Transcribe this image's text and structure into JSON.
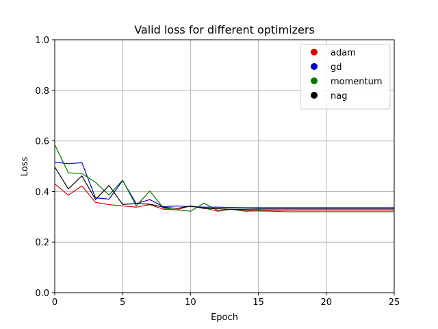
{
  "chart_data": {
    "type": "line",
    "title": "Valid loss for different optimizers",
    "xlabel": "Epoch",
    "ylabel": "Loss",
    "xlim": [
      0,
      25
    ],
    "ylim": [
      0,
      1.0
    ],
    "xticks": [
      0,
      5,
      10,
      15,
      20,
      25
    ],
    "yticks": [
      0.0,
      0.2,
      0.4,
      0.6,
      0.8,
      1.0
    ],
    "ytick_labels": [
      "0.0",
      "0.2",
      "0.4",
      "0.6",
      "0.8",
      "1.0"
    ],
    "grid": true,
    "legend_position": "top-right",
    "x": [
      0,
      1,
      2,
      3,
      4,
      5,
      6,
      7,
      8,
      9,
      10,
      11,
      12,
      13,
      14,
      15,
      16,
      17,
      18,
      19,
      20,
      21,
      22,
      23,
      24,
      25
    ],
    "series": [
      {
        "name": "adam",
        "color": "#dd0000",
        "values": [
          0.43,
          0.386,
          0.422,
          0.357,
          0.348,
          0.343,
          0.338,
          0.348,
          0.33,
          0.328,
          0.343,
          0.335,
          0.322,
          0.33,
          0.325,
          0.327,
          0.325,
          0.325,
          0.326,
          0.326,
          0.326,
          0.326,
          0.326,
          0.326,
          0.326,
          0.326
        ]
      },
      {
        "name": "gd",
        "color": "#0000cc",
        "values": [
          0.516,
          0.51,
          0.514,
          0.375,
          0.37,
          0.443,
          0.352,
          0.368,
          0.34,
          0.343,
          0.34,
          0.338,
          0.338,
          0.337,
          0.336,
          0.336,
          0.336,
          0.336,
          0.336,
          0.336,
          0.336,
          0.336,
          0.336,
          0.336,
          0.336,
          0.336
        ]
      },
      {
        "name": "momentum",
        "color": "#007700",
        "values": [
          0.585,
          0.474,
          0.471,
          0.436,
          0.386,
          0.445,
          0.343,
          0.402,
          0.335,
          0.327,
          0.322,
          0.354,
          0.325,
          0.33,
          0.322,
          0.323,
          0.322,
          0.32,
          0.32,
          0.32,
          0.32,
          0.32,
          0.32,
          0.32,
          0.32,
          0.32
        ]
      },
      {
        "name": "nag",
        "color": "#000000",
        "values": [
          0.497,
          0.41,
          0.462,
          0.368,
          0.424,
          0.349,
          0.352,
          0.35,
          0.338,
          0.333,
          0.343,
          0.333,
          0.332,
          0.33,
          0.33,
          0.331,
          0.331,
          0.331,
          0.331,
          0.331,
          0.331,
          0.331,
          0.331,
          0.331,
          0.331,
          0.331
        ]
      }
    ]
  }
}
